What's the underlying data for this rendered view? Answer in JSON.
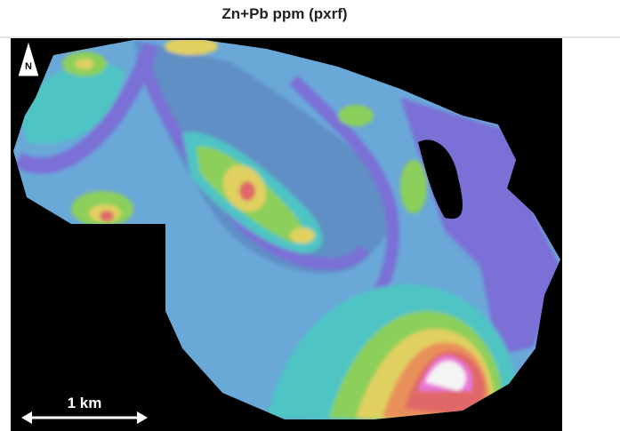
{
  "title": "Zn+Pb ppm (pxrf)",
  "north_label": "N",
  "scale_label": "1 km"
}
